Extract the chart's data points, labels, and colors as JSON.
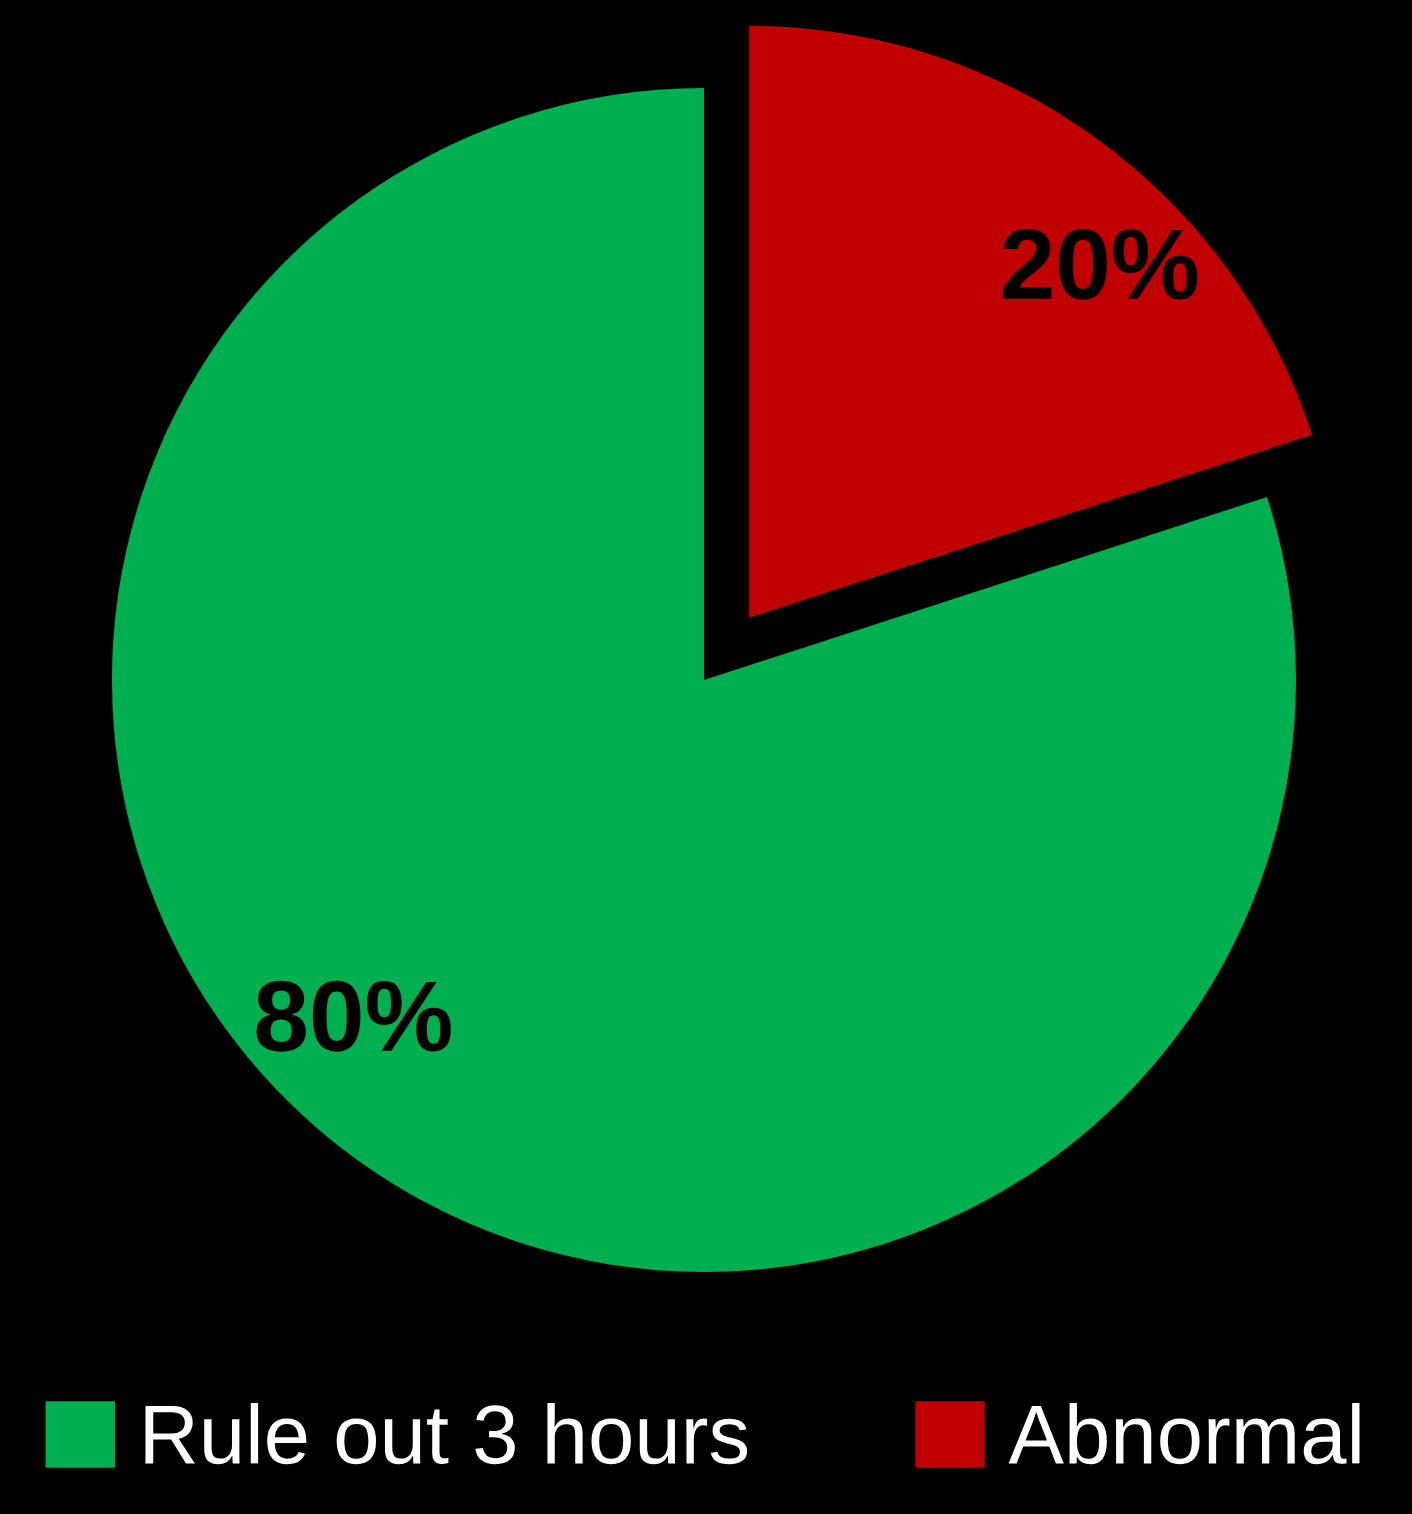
{
  "chart_data": {
    "type": "pie",
    "categories": [
      "Rule out 3 hours",
      "Abnormal"
    ],
    "values": [
      80,
      20
    ],
    "colors": [
      "#00b050",
      "#c00000"
    ],
    "value_labels": [
      "80%",
      "20%"
    ],
    "legend": "bottom"
  }
}
